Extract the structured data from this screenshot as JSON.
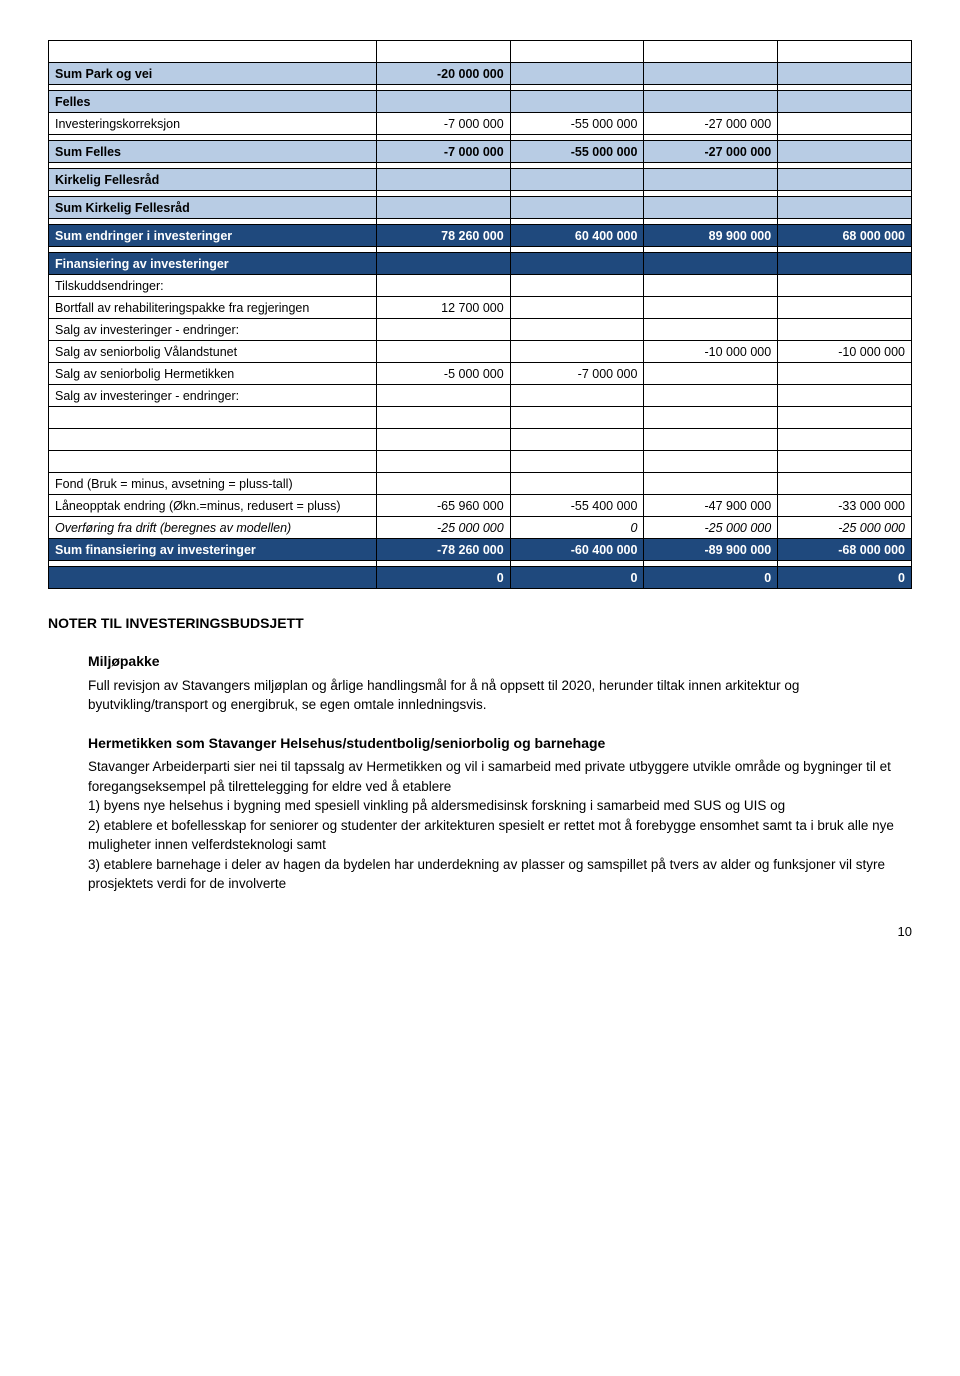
{
  "colors": {
    "header_bg": "#1f497d",
    "header_fg": "#ffffff",
    "lightblue_bg": "#b8cce4",
    "border": "#000000",
    "text": "#000000"
  },
  "table": {
    "park_vei": {
      "label": "Sum Park og vei",
      "c1": "-20 000 000"
    },
    "felles_hdr": "Felles",
    "invest_korr": {
      "label": "Investeringskorreksjon",
      "c1": "-7 000 000",
      "c2": "-55 000 000",
      "c3": "-27 000 000"
    },
    "sum_felles": {
      "label": "Sum Felles",
      "c1": "-7 000 000",
      "c2": "-55 000 000",
      "c3": "-27 000 000"
    },
    "kirkelig_hdr": "Kirkelig Fellesråd",
    "sum_kirkelig": "Sum Kirkelig Fellesråd",
    "sum_endringer": {
      "label": "Sum endringer i investeringer",
      "c1": "78 260 000",
      "c2": "60 400 000",
      "c3": "89 900 000",
      "c4": "68 000 000"
    },
    "finans_hdr": "Finansiering av investeringer",
    "tilskudd": "Tilskuddsendringer:",
    "bort": {
      "label": "Bortfall av rehabiliteringspakke fra regjeringen",
      "c1": "12 700 000"
    },
    "salg_endr1": "Salg av investeringer - endringer:",
    "valand": {
      "label": "Salg av seniorbolig Vålandstunet",
      "c3": "-10 000 000",
      "c4": "-10 000 000"
    },
    "hermet": {
      "label": "Salg av seniorbolig Hermetikken",
      "c1": "-5 000 000",
      "c2": "-7 000 000"
    },
    "salg_endr2": "Salg av investeringer - endringer:",
    "fond": "Fond (Bruk = minus, avsetning = pluss-tall)",
    "lane": {
      "label": "Låneopptak endring (Økn.=minus, redusert = pluss)",
      "c1": "-65 960 000",
      "c2": "-55 400 000",
      "c3": "-47 900 000",
      "c4": "-33 000 000"
    },
    "overf": {
      "label": "Overføring fra drift (beregnes av modellen)",
      "c1": "-25 000 000",
      "c2": "0",
      "c3": "-25 000 000",
      "c4": "-25 000 000"
    },
    "sumfin": {
      "label": "Sum finansiering av investeringer",
      "c1": "-78 260 000",
      "c2": "-60 400 000",
      "c3": "-89 900 000",
      "c4": "-68 000 000"
    },
    "zeros": {
      "c1": "0",
      "c2": "0",
      "c3": "0",
      "c4": "0"
    }
  },
  "body": {
    "noter_hdr": "NOTER TIL INVESTERINGSBUDSJETT",
    "miljo_hdr": "Miljøpakke",
    "miljo_txt": "Full revisjon av Stavangers miljøplan og årlige handlingsmål for å nå oppsett til 2020, herunder tiltak innen arkitektur og byutvikling/transport og energibruk, se egen omtale innledningsvis.",
    "herm_hdr": "Hermetikken som Stavanger Helsehus/studentbolig/seniorbolig og barnehage",
    "herm_txt": "Stavanger Arbeiderparti sier nei til tapssalg av Hermetikken og vil i samarbeid med private utbyggere utvikle område og bygninger til et foregangseksempel på tilrettelegging for eldre ved å etablere\n1) byens nye helsehus i bygning med spesiell vinkling på aldersmedisinsk forskning i samarbeid med SUS og UIS og\n2) etablere et bofellesskap for seniorer og studenter der arkitekturen spesielt er rettet mot å forebygge ensomhet samt ta i bruk alle nye muligheter innen velferdsteknologi samt\n3) etablere barnehage i deler av hagen da bydelen har underdekning av plasser og samspillet på tvers av alder og funksjoner vil styre prosjektets verdi for de involverte"
  },
  "page_number": "10"
}
